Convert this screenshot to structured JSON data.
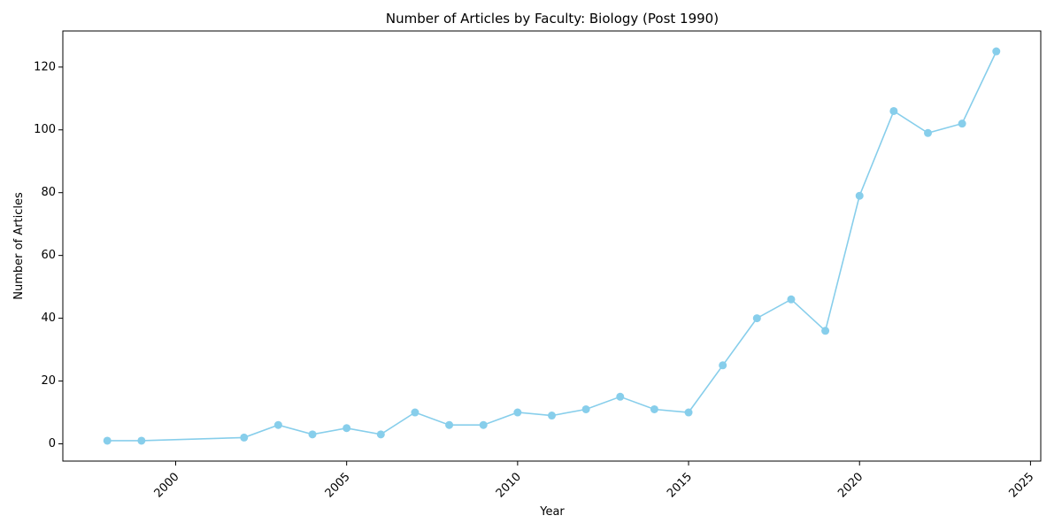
{
  "chart_data": {
    "type": "line",
    "title": "Number of Articles by Faculty: Biology (Post 1990)",
    "xlabel": "Year",
    "ylabel": "Number of Articles",
    "xlim": [
      1996.7,
      2025.3
    ],
    "ylim": [
      -5.5,
      131.5
    ],
    "x_ticks": [
      2000,
      2005,
      2010,
      2015,
      2020,
      2025
    ],
    "x_tick_labels": [
      "2000",
      "2005",
      "2010",
      "2015",
      "2020",
      "2025"
    ],
    "y_ticks": [
      0,
      20,
      40,
      60,
      80,
      100,
      120
    ],
    "y_tick_labels": [
      "0",
      "20",
      "40",
      "60",
      "80",
      "100",
      "120"
    ],
    "grid": false,
    "color": "#87ceeb",
    "series": [
      {
        "x": [
          1998,
          1999,
          2002,
          2003,
          2004,
          2005,
          2006,
          2007,
          2008,
          2009,
          2010,
          2011,
          2012,
          2013,
          2014,
          2015,
          2016,
          2017,
          2018,
          2019,
          2020,
          2021,
          2022,
          2023,
          2024
        ],
        "values": [
          1,
          1,
          2,
          6,
          3,
          5,
          3,
          10,
          6,
          6,
          10,
          9,
          11,
          15,
          11,
          10,
          25,
          40,
          46,
          36,
          79,
          106,
          99,
          102,
          125
        ]
      }
    ]
  }
}
